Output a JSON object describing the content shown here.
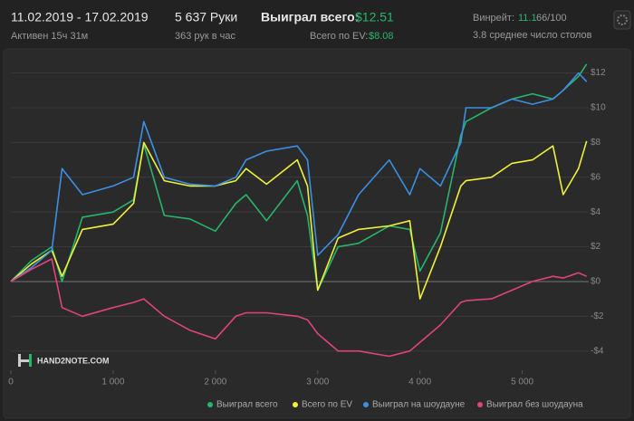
{
  "header": {
    "date_range": "11.02.2019 - 17.02.2019",
    "active": "Активен 15ч 31м",
    "hands": "5 637 Руки",
    "hands_per_hour": "363 рук в час",
    "won_label": "Выиграл всего:",
    "won_value": "$12.51",
    "ev_label": "Всего по EV:",
    "ev_value": "$8.08",
    "winrate_label": "Винрейт:",
    "winrate_value": "11.1",
    "winrate_ratio": "66/100",
    "avg_tables": "3.8 среднее число столов"
  },
  "logo": "HAND2NOTE.COM",
  "chart_data": {
    "type": "line",
    "x": [
      0,
      200,
      400,
      500,
      700,
      1000,
      1200,
      1300,
      1500,
      1750,
      2000,
      2200,
      2300,
      2500,
      2800,
      2900,
      3000,
      3200,
      3400,
      3700,
      3900,
      4000,
      4200,
      4400,
      4450,
      4700,
      4900,
      5100,
      5300,
      5400,
      5550,
      5630
    ],
    "series": [
      {
        "name": "Выиграл всего",
        "color": "#27b56c",
        "values": [
          0,
          1.2,
          2,
          0,
          3.7,
          4,
          4.7,
          7.9,
          3.8,
          3.6,
          2.9,
          4.5,
          5,
          3.5,
          5.8,
          3.8,
          -0.5,
          2,
          2.2,
          3.2,
          3,
          0.6,
          2.8,
          8.4,
          9.2,
          10,
          10.5,
          10.8,
          10.5,
          11,
          11.8,
          12.51
        ]
      },
      {
        "name": "Всего по EV",
        "color": "#f0f03c",
        "values": [
          0,
          1,
          1.8,
          0.3,
          3,
          3.3,
          4.5,
          8,
          5.8,
          5.5,
          5.5,
          5.8,
          6.5,
          5.6,
          7,
          5.5,
          -0.5,
          2.5,
          3,
          3.2,
          3.5,
          -1,
          2,
          5.5,
          5.8,
          6,
          6.8,
          7,
          7.8,
          5,
          6.5,
          8.08
        ]
      },
      {
        "name": "Выиграл на шоудауне",
        "color": "#3b8fe4",
        "values": [
          0,
          0.8,
          1.8,
          6.5,
          5,
          5.5,
          6,
          9.2,
          6,
          5.6,
          5.5,
          6,
          7,
          7.5,
          7.8,
          7,
          1.5,
          2.7,
          5,
          7,
          5,
          6.5,
          5.5,
          8,
          10,
          10,
          10.5,
          10.2,
          10.5,
          11,
          12,
          11.5
        ]
      },
      {
        "name": "Выиграл без шоудауна",
        "color": "#e0437c",
        "values": [
          0,
          0.7,
          1.3,
          -1.5,
          -2,
          -1.5,
          -1.2,
          -1,
          -2,
          -2.8,
          -3.3,
          -2,
          -1.8,
          -1.8,
          -2,
          -2.2,
          -3,
          -4,
          -4,
          -4.3,
          -4,
          -3.5,
          -2.5,
          -1.2,
          -1.1,
          -1,
          -0.5,
          0,
          0.3,
          0.2,
          0.5,
          0.3
        ]
      }
    ],
    "xlim": [
      0,
      5650
    ],
    "ylim": [
      -4.9,
      13
    ],
    "xticks": [
      0,
      {
        "value": 1000,
        "label": "1 000"
      },
      {
        "value": 2000,
        "label": "2 000"
      },
      {
        "value": 3000,
        "label": "3 000"
      },
      {
        "value": 4000,
        "label": "4 000"
      },
      {
        "value": 5000,
        "label": "5 000"
      }
    ],
    "yticks": [
      {
        "value": -4,
        "label": "-$4"
      },
      {
        "value": -2,
        "label": "-$2"
      },
      {
        "value": 0,
        "label": "$0"
      },
      {
        "value": 2,
        "label": "$2"
      },
      {
        "value": 4,
        "label": "$4"
      },
      {
        "value": 6,
        "label": "$6"
      },
      {
        "value": 8,
        "label": "$8"
      },
      {
        "value": 10,
        "label": "$10"
      },
      {
        "value": 12,
        "label": "$12"
      }
    ],
    "grid": true,
    "legend": "bottom"
  }
}
